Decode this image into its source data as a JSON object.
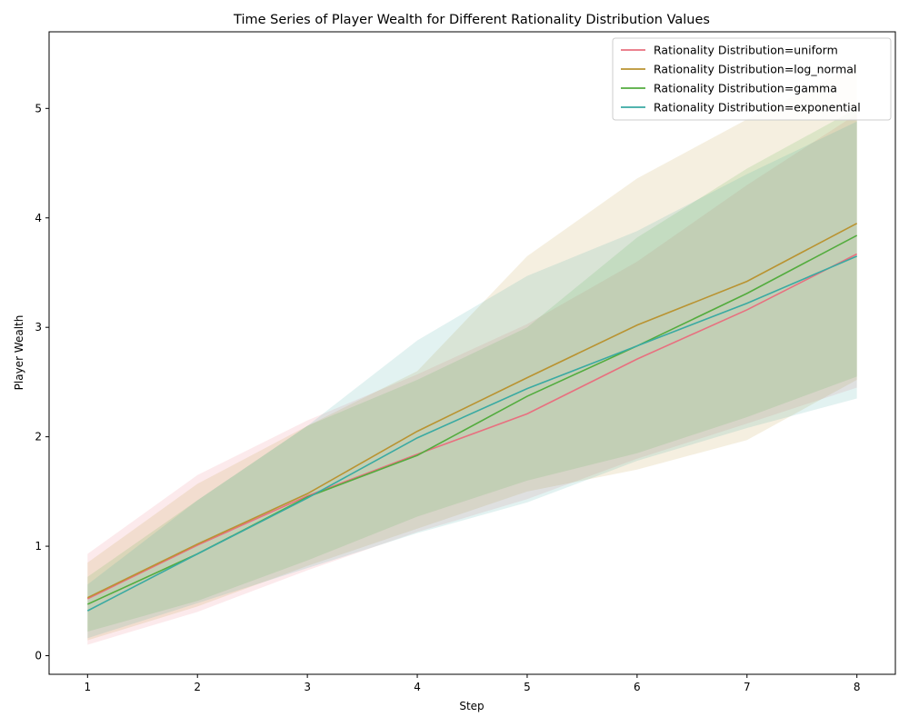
{
  "chart_data": {
    "type": "line",
    "title": "Time Series of Player Wealth for Different Rationality Distribution Values",
    "xlabel": "Step",
    "ylabel": "Player Wealth",
    "x": [
      1,
      2,
      3,
      4,
      5,
      6,
      7,
      8
    ],
    "xlim": [
      0.65,
      8.35
    ],
    "ylim": [
      -0.17,
      5.7
    ],
    "xticks": [
      "1",
      "2",
      "3",
      "4",
      "5",
      "6",
      "7",
      "8"
    ],
    "yticks": [
      "0",
      "1",
      "2",
      "3",
      "4",
      "5"
    ],
    "ytick_values": [
      0,
      1,
      2,
      3,
      4,
      5
    ],
    "grid": false,
    "legend_position": "top-right",
    "series": [
      {
        "name": "Rationality Distribution=uniform",
        "color": "#e8707f",
        "values": [
          0.52,
          1.01,
          1.46,
          1.84,
          2.21,
          2.71,
          3.16,
          3.67
        ],
        "upper": [
          0.93,
          1.65,
          2.15,
          2.57,
          3.03,
          3.6,
          4.3,
          4.95
        ],
        "lower": [
          0.1,
          0.4,
          0.78,
          1.13,
          1.43,
          1.8,
          2.12,
          2.45
        ]
      },
      {
        "name": "Rationality Distribution=log_normal",
        "color": "#b99331",
        "values": [
          0.53,
          1.02,
          1.48,
          2.05,
          2.54,
          3.02,
          3.42,
          3.95
        ],
        "upper": [
          0.85,
          1.57,
          2.1,
          2.6,
          3.65,
          4.36,
          4.9,
          5.4
        ],
        "lower": [
          0.14,
          0.45,
          0.82,
          1.16,
          1.5,
          1.7,
          1.97,
          2.52
        ]
      },
      {
        "name": "Rationality Distribution=gamma",
        "color": "#53ac3e",
        "values": [
          0.47,
          0.93,
          1.45,
          1.83,
          2.37,
          2.83,
          3.31,
          3.84
        ],
        "upper": [
          0.72,
          1.42,
          2.1,
          2.52,
          3.0,
          3.82,
          4.45,
          5.0
        ],
        "lower": [
          0.22,
          0.5,
          0.87,
          1.27,
          1.6,
          1.85,
          2.18,
          2.55
        ]
      },
      {
        "name": "Rationality Distribution=exponential",
        "color": "#3aaaa2",
        "values": [
          0.41,
          0.93,
          1.44,
          1.99,
          2.44,
          2.83,
          3.22,
          3.65
        ],
        "upper": [
          0.65,
          1.42,
          2.1,
          2.88,
          3.47,
          3.88,
          4.4,
          4.88
        ],
        "lower": [
          0.16,
          0.48,
          0.8,
          1.12,
          1.4,
          1.78,
          2.08,
          2.35
        ]
      }
    ]
  }
}
